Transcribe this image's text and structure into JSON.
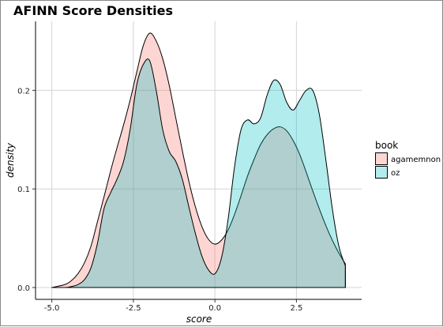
{
  "chart_data": {
    "type": "area",
    "title": "AFINN Score Densities",
    "xlabel": "score",
    "ylabel": "density",
    "xlim": [
      -5.5,
      4.5
    ],
    "ylim": [
      -0.012,
      0.27
    ],
    "x_ticks": [
      {
        "value": -5.0,
        "label": "-5.0"
      },
      {
        "value": -2.5,
        "label": "-2.5"
      },
      {
        "value": 0.0,
        "label": "0.0"
      },
      {
        "value": 2.5,
        "label": "2.5"
      }
    ],
    "y_ticks": [
      {
        "value": 0.0,
        "label": "0.0"
      },
      {
        "value": 0.1,
        "label": "0.1"
      },
      {
        "value": 0.2,
        "label": "0.2"
      }
    ],
    "grid": true,
    "legend": {
      "title": "book",
      "position": "right"
    },
    "series": [
      {
        "name": "agamemnon",
        "fill": "#F8766D",
        "opacity": 0.3,
        "x": [
          -5.0,
          -4.6,
          -4.4,
          -4.2,
          -4.0,
          -3.8,
          -3.6,
          -3.4,
          -3.2,
          -3.0,
          -2.8,
          -2.6,
          -2.4,
          -2.2,
          -2.0,
          -1.8,
          -1.6,
          -1.4,
          -1.2,
          -1.0,
          -0.8,
          -0.6,
          -0.4,
          -0.2,
          0.0,
          0.2,
          0.4,
          0.6,
          0.8,
          1.0,
          1.2,
          1.4,
          1.6,
          1.8,
          2.0,
          2.2,
          2.4,
          2.6,
          2.8,
          3.0,
          3.2,
          3.4,
          3.6,
          3.8,
          4.0
        ],
        "values": [
          0.0,
          0.003,
          0.007,
          0.014,
          0.025,
          0.042,
          0.067,
          0.092,
          0.118,
          0.142,
          0.165,
          0.19,
          0.218,
          0.245,
          0.258,
          0.25,
          0.232,
          0.205,
          0.172,
          0.139,
          0.108,
          0.082,
          0.062,
          0.049,
          0.044,
          0.048,
          0.058,
          0.074,
          0.093,
          0.113,
          0.13,
          0.145,
          0.155,
          0.161,
          0.163,
          0.159,
          0.149,
          0.135,
          0.117,
          0.098,
          0.08,
          0.063,
          0.048,
          0.035,
          0.024
        ]
      },
      {
        "name": "oz",
        "fill": "#00BFC4",
        "opacity": 0.3,
        "x": [
          -5.0,
          -4.6,
          -4.4,
          -4.2,
          -4.0,
          -3.8,
          -3.6,
          -3.4,
          -3.2,
          -3.0,
          -2.8,
          -2.6,
          -2.4,
          -2.2,
          -2.0,
          -1.8,
          -1.6,
          -1.4,
          -1.2,
          -1.0,
          -0.8,
          -0.6,
          -0.4,
          -0.2,
          0.0,
          0.2,
          0.4,
          0.6,
          0.8,
          1.0,
          1.2,
          1.4,
          1.6,
          1.8,
          2.0,
          2.2,
          2.4,
          2.6,
          2.8,
          3.0,
          3.2,
          3.4,
          3.6,
          3.8,
          4.0
        ],
        "values": [
          0.0,
          0.0,
          0.001,
          0.003,
          0.008,
          0.02,
          0.045,
          0.08,
          0.096,
          0.11,
          0.128,
          0.16,
          0.205,
          0.226,
          0.23,
          0.2,
          0.16,
          0.138,
          0.128,
          0.11,
          0.082,
          0.055,
          0.032,
          0.018,
          0.014,
          0.03,
          0.068,
          0.122,
          0.16,
          0.17,
          0.166,
          0.172,
          0.195,
          0.21,
          0.206,
          0.188,
          0.18,
          0.19,
          0.2,
          0.2,
          0.176,
          0.13,
          0.08,
          0.042,
          0.022
        ]
      }
    ]
  }
}
